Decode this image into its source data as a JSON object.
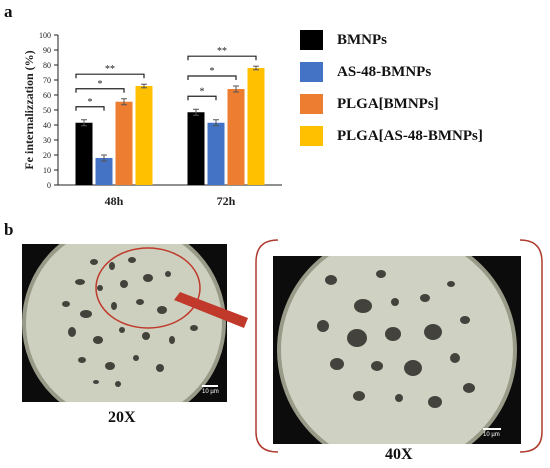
{
  "panel_a_label": "a",
  "panel_b_label": "b",
  "chart_data": {
    "type": "bar",
    "categories": [
      "48h",
      "72h"
    ],
    "series": [
      {
        "name": "BMNPs",
        "values": [
          41.5,
          48.5
        ],
        "errors": [
          2.0,
          2.0
        ]
      },
      {
        "name": "AS-48-BMNPs",
        "values": [
          18,
          41.5
        ],
        "errors": [
          2.0,
          2.0
        ]
      },
      {
        "name": "PLGA[BMNPs]",
        "values": [
          55.5,
          64
        ],
        "errors": [
          2.0,
          2.0
        ]
      },
      {
        "name": "PLGA[AS-48-BMNPs]",
        "values": [
          66,
          78
        ],
        "errors": [
          1.2,
          1.2
        ]
      }
    ],
    "series_colors": [
      "#000000",
      "#4472c4",
      "#ed7d31",
      "#ffc000"
    ],
    "ylabel": "Fe internalizzation (%)",
    "xlabel": "",
    "ylim": [
      0,
      100
    ],
    "yticks": [
      "0",
      "10",
      "20",
      "30",
      "40",
      "50",
      "60",
      "70",
      "80",
      "90",
      "100"
    ],
    "significance": [
      {
        "category": "48h",
        "from": "BMNPs",
        "to": "AS-48-BMNPs",
        "label": "*"
      },
      {
        "category": "48h",
        "from": "BMNPs",
        "to": "PLGA[BMNPs]",
        "label": "*"
      },
      {
        "category": "48h",
        "from": "BMNPs",
        "to": "PLGA[AS-48-BMNPs]",
        "label": "**"
      },
      {
        "category": "72h",
        "from": "BMNPs",
        "to": "AS-48-BMNPs",
        "label": "*"
      },
      {
        "category": "72h",
        "from": "BMNPs",
        "to": "PLGA[BMNPs]",
        "label": "*"
      },
      {
        "category": "72h",
        "from": "BMNPs",
        "to": "PLGA[AS-48-BMNPs]",
        "label": "**"
      }
    ],
    "legend_placement": "right",
    "grid": false
  },
  "micrographs": {
    "left": {
      "caption": "20X",
      "scale": "10 µm"
    },
    "right": {
      "caption": "40X",
      "scale": "10 µm"
    }
  },
  "colors": {
    "highlight": "#c0392b",
    "bracket": "#b03a2e"
  }
}
